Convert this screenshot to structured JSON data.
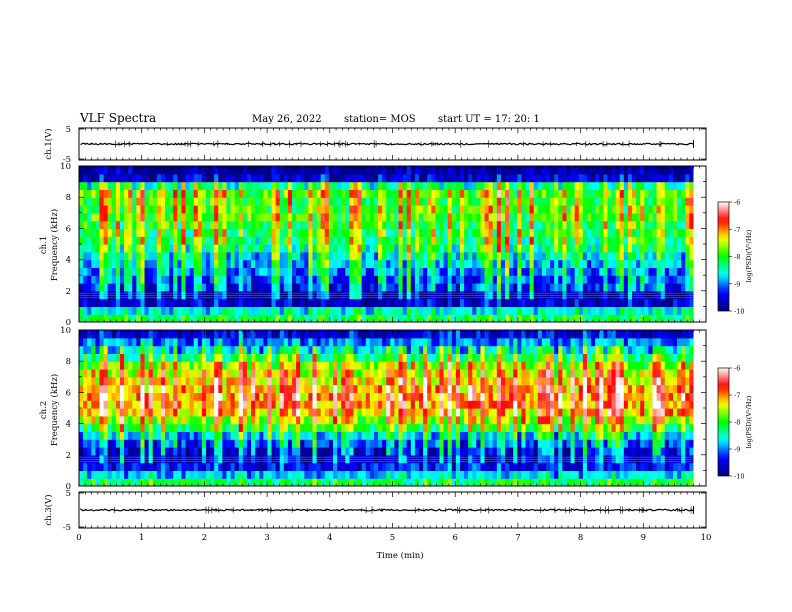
{
  "header": {
    "title": "VLF Spectra",
    "date": "May 26, 2022",
    "station": "station= MOS",
    "start": "start  UT  =   17: 20: 1"
  },
  "panels": {
    "ch1_waveform": {
      "ylabel": "ch.1(V)",
      "yticks": [
        "5",
        "-5"
      ]
    },
    "ch1_spec": {
      "ylabel_top": "ch.1",
      "ylabel": "Frequency (kHz)",
      "yticks": [
        "0",
        "2",
        "4",
        "6",
        "8",
        "10"
      ]
    },
    "ch2_spec": {
      "ylabel_top": "ch.2",
      "ylabel": "Frequency (kHz)",
      "yticks": [
        "0",
        "2",
        "4",
        "6",
        "8",
        "10"
      ]
    },
    "ch3_waveform": {
      "ylabel": "ch.3(V)",
      "yticks": [
        "5",
        "-5"
      ]
    }
  },
  "xaxis": {
    "label": "Time (min)",
    "ticks": [
      "0",
      "1",
      "2",
      "3",
      "4",
      "5",
      "6",
      "7",
      "8",
      "9",
      "10"
    ]
  },
  "colorbar": {
    "label": "log(PSD)(V²/Hz)",
    "ticks": [
      "-6",
      "-7",
      "-8",
      "-9",
      "-10"
    ]
  },
  "chart_data": [
    {
      "type": "line",
      "panel": "ch.1 waveform",
      "ylabel": "ch.1(V)",
      "xlim": [
        0,
        10
      ],
      "ylim": [
        -5,
        5
      ],
      "series": [
        {
          "x": [
            0,
            9.8
          ],
          "y": [
            0,
            0
          ]
        }
      ]
    },
    {
      "type": "heatmap",
      "panel": "ch.1 spectrogram",
      "xlabel": "Time (min)",
      "ylabel": "Frequency (kHz)",
      "xlim": [
        0,
        9.8
      ],
      "ylim": [
        0,
        10
      ],
      "zlim": [
        -10,
        -6
      ],
      "zlabel": "log(PSD)(V²/Hz)",
      "colormap": [
        "#000080",
        "#0000ff",
        "#00ffff",
        "#00ff00",
        "#ffff00",
        "#ff0000",
        "#ffffff"
      ],
      "freq_profile_kHz": [
        0.25,
        0.75,
        1.25,
        1.75,
        2.25,
        2.75,
        3.25,
        3.75,
        4.25,
        4.75,
        5.25,
        5.75,
        6.25,
        6.75,
        7.25,
        7.75,
        8.25,
        8.75,
        9.25,
        9.75
      ],
      "mean_log_psd": [
        -8.2,
        -8.6,
        -9.6,
        -9.8,
        -9.2,
        -9.0,
        -8.9,
        -8.7,
        -8.5,
        -8.2,
        -8.1,
        -8.0,
        -7.9,
        -7.8,
        -7.8,
        -7.8,
        -7.7,
        -8.3,
        -9.6,
        -9.9
      ]
    },
    {
      "type": "heatmap",
      "panel": "ch.2 spectrogram",
      "xlabel": "Time (min)",
      "ylabel": "Frequency (kHz)",
      "xlim": [
        0,
        9.8
      ],
      "ylim": [
        0,
        10
      ],
      "zlim": [
        -10,
        -6
      ],
      "zlabel": "log(PSD)(V²/Hz)",
      "colormap": [
        "#000080",
        "#0000ff",
        "#00ffff",
        "#00ff00",
        "#ffff00",
        "#ff0000",
        "#ffffff"
      ],
      "freq_profile_kHz": [
        0.25,
        0.75,
        1.25,
        1.75,
        2.25,
        2.75,
        3.25,
        3.75,
        4.25,
        4.75,
        5.25,
        5.75,
        6.25,
        6.75,
        7.25,
        7.75,
        8.25,
        8.75,
        9.25,
        9.75
      ],
      "mean_log_psd": [
        -8.2,
        -8.8,
        -9.4,
        -9.6,
        -9.4,
        -9.1,
        -8.6,
        -8.0,
        -7.5,
        -7.1,
        -6.9,
        -6.9,
        -7.0,
        -7.1,
        -7.3,
        -7.6,
        -8.1,
        -8.6,
        -9.0,
        -9.5
      ]
    },
    {
      "type": "line",
      "panel": "ch.3 waveform",
      "ylabel": "ch.3(V)",
      "xlim": [
        0,
        10
      ],
      "ylim": [
        -5,
        5
      ],
      "series": [
        {
          "x": [
            0,
            9.8
          ],
          "y": [
            0,
            0
          ]
        }
      ]
    }
  ]
}
